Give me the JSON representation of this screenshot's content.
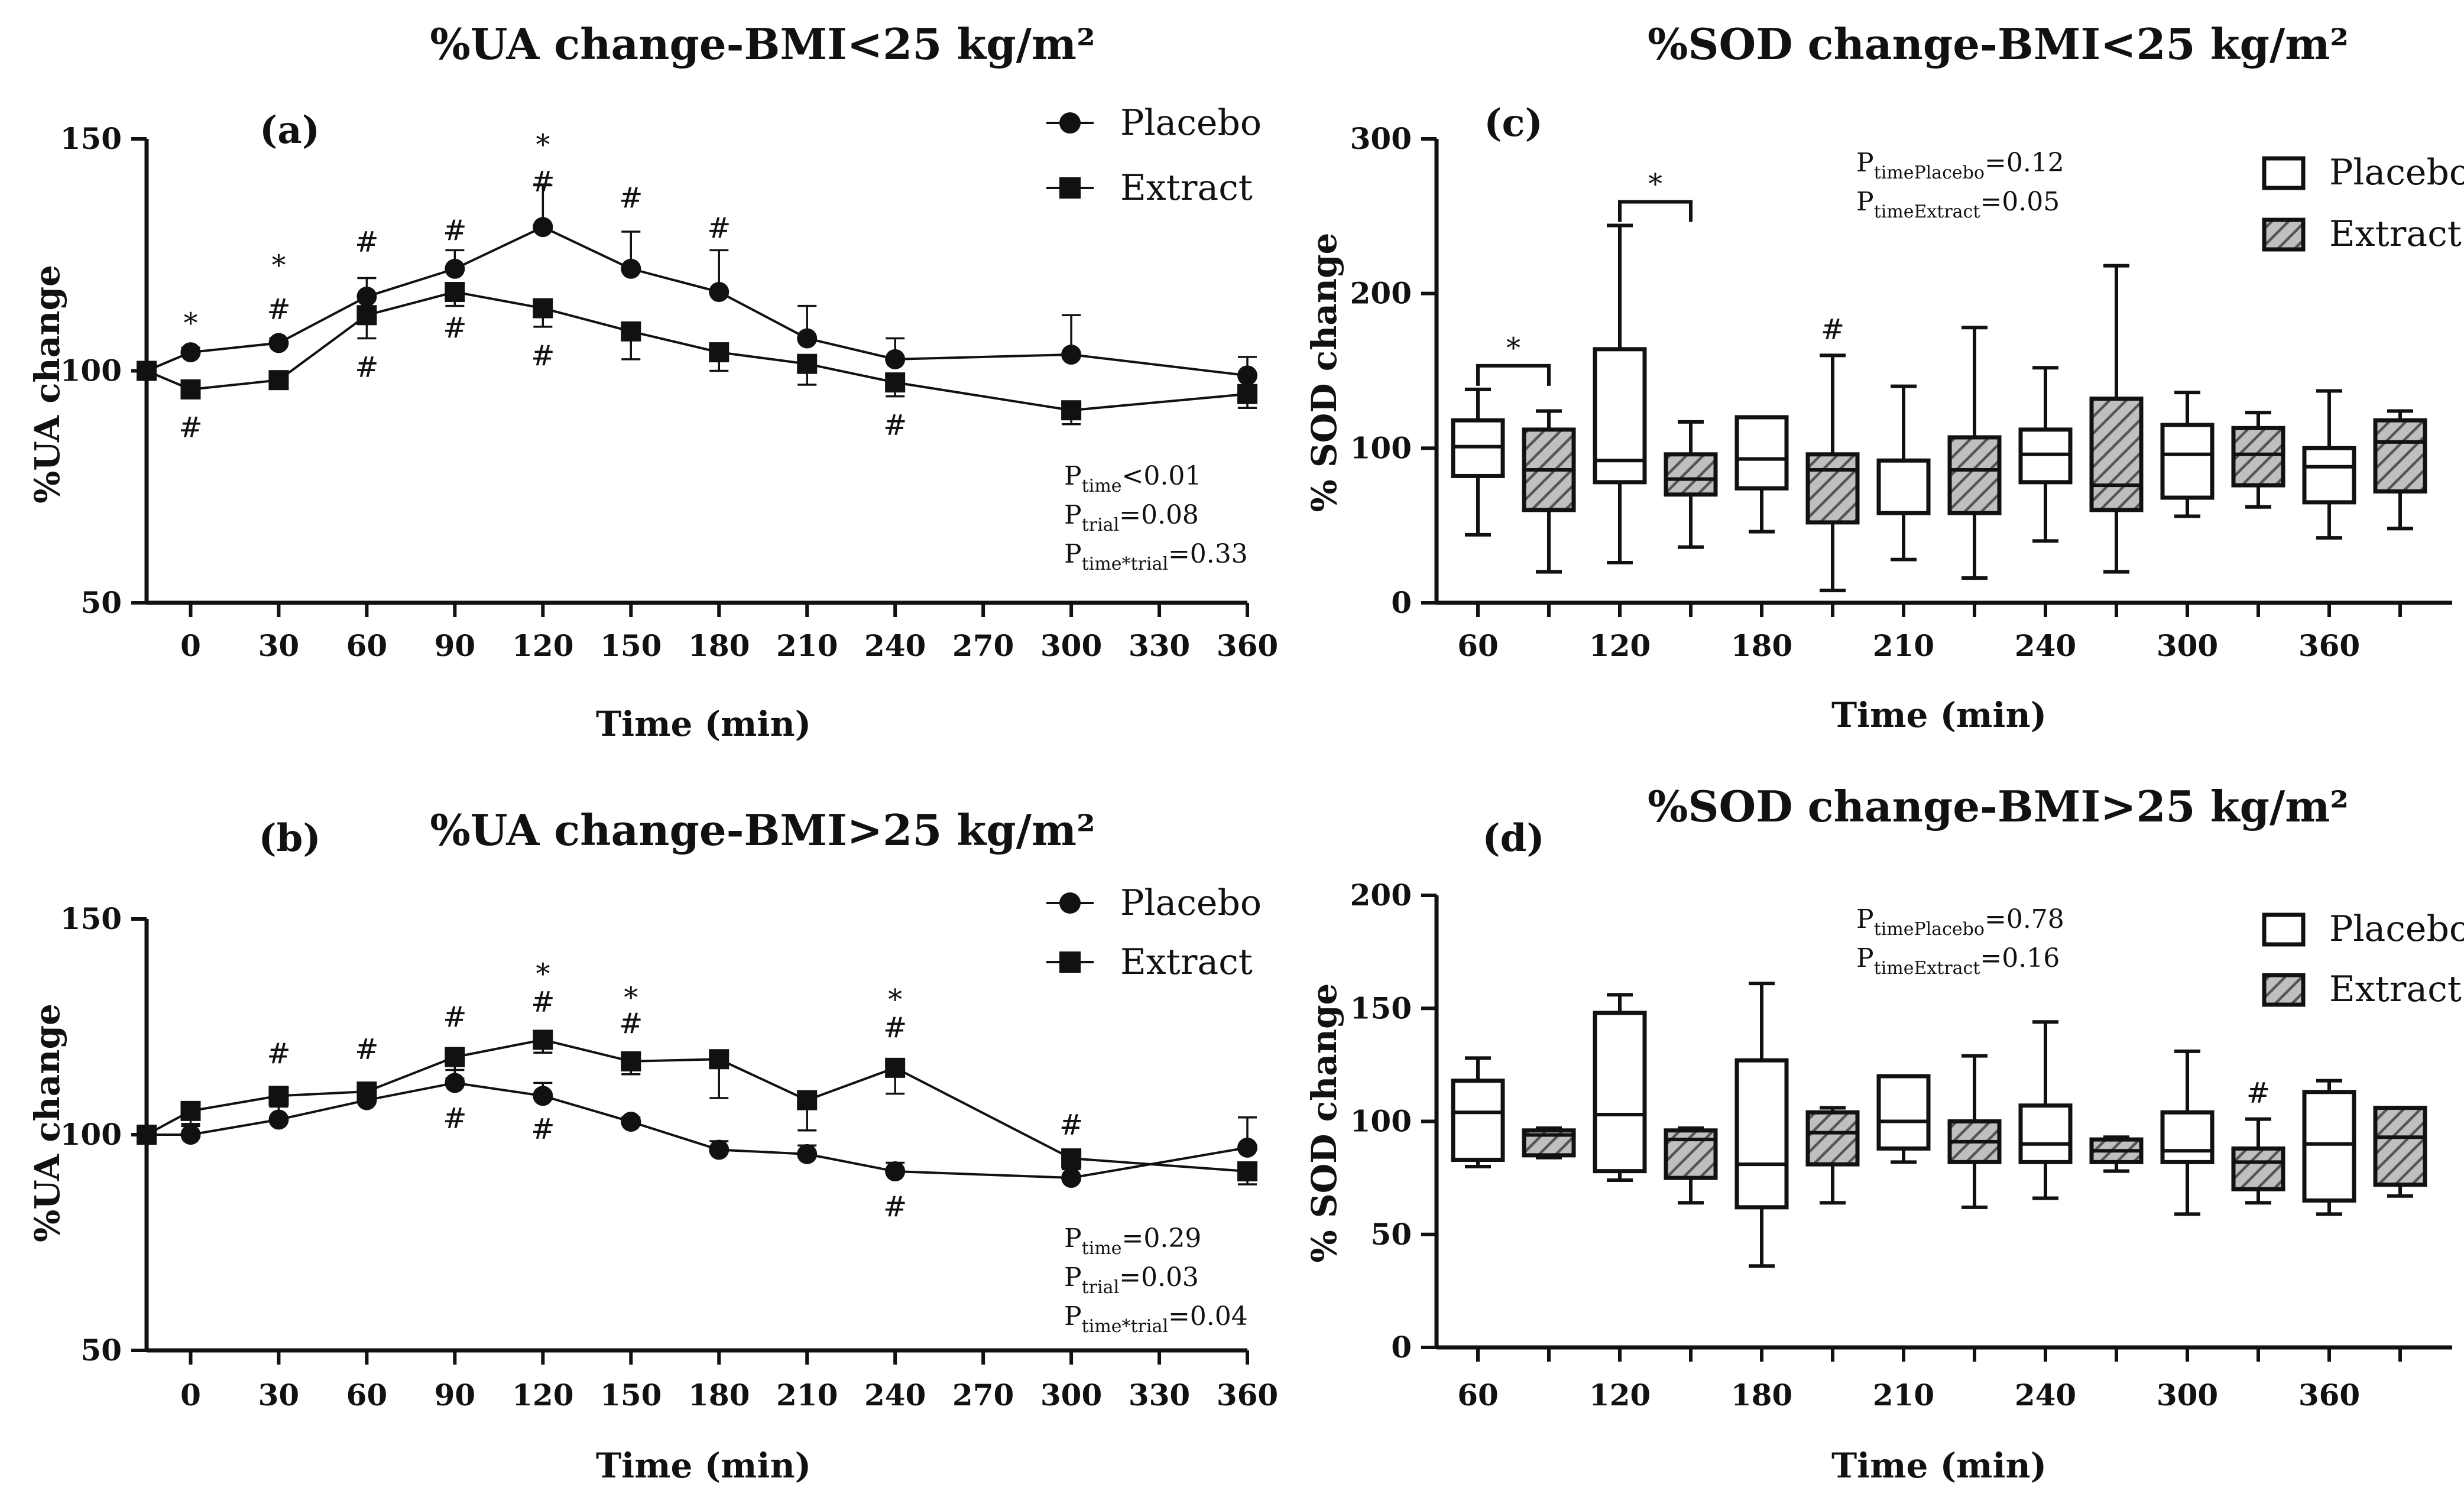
{
  "colors": {
    "ink": "#111111",
    "background": "#ffffff",
    "box_placebo": "#ffffff",
    "box_extract_hatch": "#555555"
  },
  "panels": [
    {
      "id": "a",
      "title": "%UA change-BMI<25 kg/m²",
      "panel_label": "(a)",
      "ylabel": "%UA change",
      "xlabel": "Time (min)",
      "legend": [
        "Placebo",
        "Extract"
      ],
      "stats": [
        {
          "base": "P",
          "sub": "time",
          "val": "<0.01"
        },
        {
          "base": "P",
          "sub": "trial",
          "val": "=0.08"
        },
        {
          "base": "P",
          "sub": "time*trial",
          "val": "=0.33"
        }
      ]
    },
    {
      "id": "b",
      "title": "%UA change-BMI>25 kg/m²",
      "panel_label": "(b)",
      "ylabel": "%UA change",
      "xlabel": "Time (min)",
      "legend": [
        "Placebo",
        "Extract"
      ],
      "stats": [
        {
          "base": "P",
          "sub": "time",
          "val": "=0.29"
        },
        {
          "base": "P",
          "sub": "trial",
          "val": "=0.03"
        },
        {
          "base": "P",
          "sub": "time*trial",
          "val": "=0.04"
        }
      ]
    },
    {
      "id": "c",
      "title": "%SOD change-BMI<25 kg/m²",
      "panel_label": "(c)",
      "ylabel": "% SOD change",
      "xlabel": "Time (min)",
      "legend": [
        "Placebo",
        "Extract"
      ],
      "stats": [
        {
          "base": "P",
          "sub": "timePlacebo",
          "val": "=0.12"
        },
        {
          "base": "P",
          "sub": "timeExtract",
          "val": "=0.05"
        }
      ]
    },
    {
      "id": "d",
      "title": "%SOD change-BMI>25 kg/m²",
      "panel_label": "(d)",
      "ylabel": "% SOD change",
      "xlabel": "Time (min)",
      "legend": [
        "Placebo",
        "Extract"
      ],
      "stats": [
        {
          "base": "P",
          "sub": "timePlacebo",
          "val": "=0.78"
        },
        {
          "base": "P",
          "sub": "timeExtract",
          "val": "=0.16"
        }
      ]
    }
  ],
  "chart_data": [
    {
      "type": "line",
      "title": "%UA change-BMI<25 kg/m²",
      "panel": "(a)",
      "xlabel": "Time (min)",
      "ylabel": "%UA change",
      "xlim": [
        -15,
        360
      ],
      "ylim": [
        50,
        150
      ],
      "xticks": [
        0,
        30,
        60,
        90,
        120,
        150,
        180,
        210,
        240,
        270,
        300,
        330,
        360
      ],
      "yticks": [
        50,
        100,
        150
      ],
      "series": [
        {
          "name": "Placebo",
          "marker": "circle",
          "x": [
            -15,
            0,
            30,
            60,
            90,
            120,
            150,
            180,
            210,
            240,
            300,
            360
          ],
          "y": [
            100,
            104,
            106,
            116,
            122,
            131,
            122,
            117,
            107,
            102.5,
            103.5,
            99
          ],
          "err": [
            0,
            1,
            1,
            4,
            4,
            9,
            8,
            9,
            7,
            4.5,
            8.5,
            4
          ]
        },
        {
          "name": "Extract",
          "marker": "square",
          "x": [
            -15,
            0,
            30,
            60,
            90,
            120,
            150,
            180,
            210,
            240,
            300,
            360
          ],
          "y": [
            100,
            96,
            98,
            112,
            117,
            113.5,
            108.5,
            104,
            101.5,
            97.5,
            91.5,
            95
          ],
          "err": [
            0,
            1,
            1,
            5,
            3,
            4,
            6,
            4,
            4.5,
            3,
            3,
            3
          ]
        }
      ],
      "annotations": [
        {
          "x": 0,
          "y": 110,
          "text": "*"
        },
        {
          "x": 0,
          "y": 87.5,
          "text": "#"
        },
        {
          "x": 30,
          "y": 122.5,
          "text": "*"
        },
        {
          "x": 30,
          "y": 113,
          "text": "#"
        },
        {
          "x": 60,
          "y": 127.5,
          "text": "#"
        },
        {
          "x": 60,
          "y": 100.5,
          "text": "#"
        },
        {
          "x": 90,
          "y": 130,
          "text": "#"
        },
        {
          "x": 90,
          "y": 109,
          "text": "#"
        },
        {
          "x": 120,
          "y": 148.5,
          "text": "*"
        },
        {
          "x": 120,
          "y": 140.5,
          "text": "#"
        },
        {
          "x": 120,
          "y": 103,
          "text": "#"
        },
        {
          "x": 150,
          "y": 137,
          "text": "#"
        },
        {
          "x": 180,
          "y": 130.5,
          "text": "#"
        },
        {
          "x": 240,
          "y": 88,
          "text": "#"
        }
      ]
    },
    {
      "type": "line",
      "title": "%UA change-BMI>25 kg/m²",
      "panel": "(b)",
      "xlabel": "Time (min)",
      "ylabel": "%UA change",
      "xlim": [
        -15,
        360
      ],
      "ylim": [
        50,
        150
      ],
      "xticks": [
        0,
        30,
        60,
        90,
        120,
        150,
        180,
        210,
        240,
        270,
        300,
        330,
        360
      ],
      "yticks": [
        50,
        100,
        150
      ],
      "series": [
        {
          "name": "Placebo",
          "marker": "circle",
          "x": [
            -15,
            0,
            30,
            60,
            90,
            120,
            150,
            180,
            210,
            240,
            300,
            360
          ],
          "y": [
            100,
            100,
            103.5,
            108,
            112,
            109,
            103,
            96.5,
            95.5,
            91.5,
            90,
            97
          ],
          "err": [
            0,
            2,
            3,
            3,
            3,
            3,
            1,
            2,
            2,
            2,
            2,
            7
          ]
        },
        {
          "name": "Extract",
          "marker": "square",
          "x": [
            -15,
            0,
            30,
            60,
            90,
            120,
            150,
            180,
            210,
            240,
            300,
            360
          ],
          "y": [
            100,
            105.5,
            109,
            110,
            118,
            122,
            117,
            117.5,
            108,
            115.5,
            94.5,
            91.5
          ],
          "err": [
            0,
            3,
            2,
            2,
            5,
            3,
            3,
            9,
            7,
            6,
            2,
            3
          ]
        }
      ],
      "annotations": [
        {
          "x": 30,
          "y": 118.5,
          "text": "#"
        },
        {
          "x": 60,
          "y": 119.5,
          "text": "#"
        },
        {
          "x": 90,
          "y": 127,
          "text": "#"
        },
        {
          "x": 90,
          "y": 103.5,
          "text": "#"
        },
        {
          "x": 120,
          "y": 137,
          "text": "*"
        },
        {
          "x": 120,
          "y": 130.5,
          "text": "#"
        },
        {
          "x": 120,
          "y": 101,
          "text": "#"
        },
        {
          "x": 150,
          "y": 131.5,
          "text": "*"
        },
        {
          "x": 150,
          "y": 125.5,
          "text": "#"
        },
        {
          "x": 240,
          "y": 131,
          "text": "*"
        },
        {
          "x": 240,
          "y": 124.5,
          "text": "#"
        },
        {
          "x": 240,
          "y": 83,
          "text": "#"
        },
        {
          "x": 300,
          "y": 102,
          "text": "#"
        }
      ]
    },
    {
      "type": "box",
      "title": "%SOD change-BMI<25 kg/m²",
      "panel": "(c)",
      "xlabel": "Time (min)",
      "ylabel": "% SOD change",
      "ylim": [
        0,
        300
      ],
      "yticks": [
        0,
        100,
        200,
        300
      ],
      "categories": [
        "60",
        "120",
        "180",
        "210",
        "240",
        "300",
        "360"
      ],
      "boxes": [
        {
          "time": "60",
          "group": "Placebo",
          "min": 44,
          "q1": 82,
          "median": 101,
          "q3": 118,
          "max": 138
        },
        {
          "time": "60",
          "group": "Extract",
          "min": 20,
          "q1": 60,
          "median": 86,
          "q3": 112,
          "max": 124
        },
        {
          "time": "120",
          "group": "Placebo",
          "min": 26,
          "q1": 78,
          "median": 92,
          "q3": 164,
          "max": 244
        },
        {
          "time": "120",
          "group": "Extract",
          "min": 36,
          "q1": 70,
          "median": 80,
          "q3": 96,
          "max": 117
        },
        {
          "time": "180",
          "group": "Placebo",
          "min": 46,
          "q1": 74,
          "median": 93,
          "q3": 120,
          "max": 120
        },
        {
          "time": "180",
          "group": "Extract",
          "min": 8,
          "q1": 52,
          "median": 86,
          "q3": 96,
          "max": 160
        },
        {
          "time": "210",
          "group": "Placebo",
          "min": 28,
          "q1": 58,
          "median": 92,
          "q3": 92,
          "max": 140
        },
        {
          "time": "210",
          "group": "Extract",
          "min": 16,
          "q1": 58,
          "median": 86,
          "q3": 107,
          "max": 178
        },
        {
          "time": "240",
          "group": "Placebo",
          "min": 40,
          "q1": 78,
          "median": 96,
          "q3": 112,
          "max": 152
        },
        {
          "time": "240",
          "group": "Extract",
          "min": 20,
          "q1": 60,
          "median": 76,
          "q3": 132,
          "max": 218
        },
        {
          "time": "300",
          "group": "Placebo",
          "min": 56,
          "q1": 68,
          "median": 96,
          "q3": 115,
          "max": 136
        },
        {
          "time": "300",
          "group": "Extract",
          "min": 62,
          "q1": 76,
          "median": 96,
          "q3": 113,
          "max": 123
        },
        {
          "time": "360",
          "group": "Placebo",
          "min": 42,
          "q1": 65,
          "median": 88,
          "q3": 100,
          "max": 137
        },
        {
          "time": "360",
          "group": "Extract",
          "min": 48,
          "q1": 72,
          "median": 104,
          "q3": 118,
          "max": 124
        }
      ],
      "annotations": [
        {
          "text": "*",
          "between": [
            "60 Placebo",
            "60 Extract"
          ]
        },
        {
          "text": "*",
          "between": [
            "120 Placebo",
            "120 Extract"
          ]
        },
        {
          "text": "#",
          "at": "180 Extract"
        }
      ]
    },
    {
      "type": "box",
      "title": "%SOD change-BMI>25 kg/m²",
      "panel": "(d)",
      "xlabel": "Time (min)",
      "ylabel": "% SOD change",
      "ylim": [
        0,
        200
      ],
      "yticks": [
        0,
        50,
        100,
        150,
        200
      ],
      "categories": [
        "60",
        "120",
        "180",
        "210",
        "240",
        "300",
        "360"
      ],
      "boxes": [
        {
          "time": "60",
          "group": "Placebo",
          "min": 80,
          "q1": 83,
          "median": 104,
          "q3": 118,
          "max": 128
        },
        {
          "time": "60",
          "group": "Extract",
          "min": 84,
          "q1": 85,
          "median": 94,
          "q3": 96,
          "max": 97
        },
        {
          "time": "120",
          "group": "Placebo",
          "min": 74,
          "q1": 78,
          "median": 103,
          "q3": 148,
          "max": 156
        },
        {
          "time": "120",
          "group": "Extract",
          "min": 64,
          "q1": 75,
          "median": 92,
          "q3": 96,
          "max": 97
        },
        {
          "time": "180",
          "group": "Placebo",
          "min": 36,
          "q1": 62,
          "median": 81,
          "q3": 127,
          "max": 161
        },
        {
          "time": "180",
          "group": "Extract",
          "min": 64,
          "q1": 81,
          "median": 95,
          "q3": 104,
          "max": 106
        },
        {
          "time": "210",
          "group": "Placebo",
          "min": 82,
          "q1": 88,
          "median": 100,
          "q3": 120,
          "max": 120
        },
        {
          "time": "210",
          "group": "Extract",
          "min": 62,
          "q1": 82,
          "median": 91,
          "q3": 100,
          "max": 129
        },
        {
          "time": "240",
          "group": "Placebo",
          "min": 66,
          "q1": 82,
          "median": 90,
          "q3": 107,
          "max": 144
        },
        {
          "time": "240",
          "group": "Extract",
          "min": 78,
          "q1": 82,
          "median": 87,
          "q3": 92,
          "max": 93
        },
        {
          "time": "300",
          "group": "Placebo",
          "min": 59,
          "q1": 82,
          "median": 87,
          "q3": 104,
          "max": 131
        },
        {
          "time": "300",
          "group": "Extract",
          "min": 64,
          "q1": 70,
          "median": 82,
          "q3": 88,
          "max": 101
        },
        {
          "time": "360",
          "group": "Placebo",
          "min": 59,
          "q1": 65,
          "median": 90,
          "q3": 113,
          "max": 118
        },
        {
          "time": "360",
          "group": "Extract",
          "min": 67,
          "q1": 72,
          "median": 93,
          "q3": 106,
          "max": 106
        }
      ],
      "annotations": [
        {
          "text": "#",
          "at": "300 Extract"
        }
      ]
    }
  ]
}
